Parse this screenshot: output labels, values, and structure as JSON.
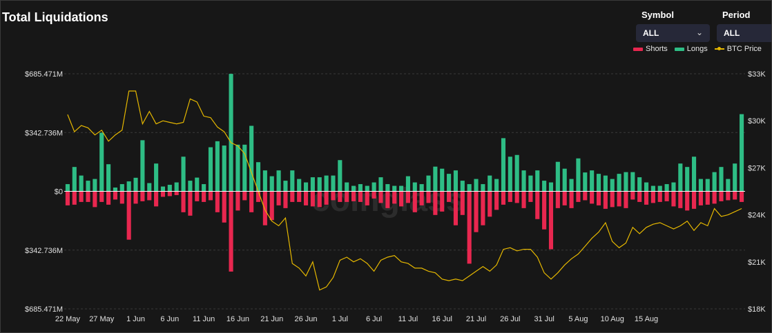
{
  "title": "Total Liquidations",
  "controls": {
    "symbol_label": "Symbol",
    "symbol_value": "ALL",
    "period_label": "Period",
    "period_value": "ALL"
  },
  "watermark": "coinglass",
  "chart_data": {
    "type": "bar",
    "title": "Total Liquidations",
    "legend": [
      {
        "name": "Shorts",
        "color": "#e8274f"
      },
      {
        "name": "Longs",
        "color": "#2ebd85"
      },
      {
        "name": "BTC Price",
        "color": "#e6b800"
      }
    ],
    "left_axis": {
      "ticks": [
        "$685.471M",
        "$342.736M",
        "$0",
        "$342.736M",
        "$685.471M"
      ],
      "range_millions": [
        -685.471,
        685.471
      ]
    },
    "right_axis": {
      "ticks": [
        "$33K",
        "$30K",
        "$27K",
        "$24K",
        "$21K",
        "$18K"
      ],
      "range": [
        18000,
        33000
      ]
    },
    "x_tick_labels": [
      "22 May",
      "27 May",
      "1 Jun",
      "6 Jun",
      "11 Jun",
      "16 Jun",
      "21 Jun",
      "26 Jun",
      "1 Jul",
      "6 Jul",
      "11 Jul",
      "16 Jul",
      "21 Jul",
      "26 Jul",
      "31 Jul",
      "5 Aug",
      "10 Aug",
      "15 Aug"
    ],
    "start_date": "22 May",
    "longs_millions": [
      42,
      142,
      92,
      62,
      72,
      342,
      158,
      22,
      42,
      58,
      79,
      298,
      48,
      162,
      28,
      38,
      52,
      202,
      62,
      80,
      42,
      257,
      292,
      267,
      685,
      272,
      272,
      382,
      170,
      122,
      88,
      122,
      62,
      122,
      72,
      52,
      82,
      82,
      92,
      92,
      182,
      52,
      32,
      42,
      32,
      52,
      82,
      42,
      32,
      32,
      88,
      52,
      42,
      92,
      144,
      132,
      102,
      122,
      62,
      42,
      72,
      42,
      92,
      72,
      310,
      202,
      212,
      122,
      92,
      122,
      62,
      52,
      172,
      132,
      72,
      192,
      110,
      122,
      102,
      92,
      72,
      102,
      112,
      112,
      82,
      52,
      32,
      32,
      42,
      52,
      162,
      142,
      202,
      72,
      72,
      112,
      142,
      72,
      162,
      450
    ],
    "shorts_millions": [
      -82,
      -78,
      -62,
      -62,
      -92,
      -62,
      -78,
      -48,
      -72,
      -282,
      -72,
      -58,
      -52,
      -88,
      -32,
      -28,
      -22,
      -122,
      -142,
      -58,
      -62,
      -52,
      -122,
      -182,
      -468,
      -112,
      -52,
      -122,
      -62,
      -198,
      -168,
      -82,
      -98,
      -62,
      -62,
      -82,
      -88,
      -92,
      -78,
      -52,
      -62,
      -62,
      -58,
      -62,
      -82,
      -42,
      -68,
      -98,
      -72,
      -88,
      -68,
      -122,
      -82,
      -68,
      -138,
      -118,
      -62,
      -198,
      -138,
      -422,
      -238,
      -198,
      -148,
      -108,
      -78,
      -62,
      -68,
      -98,
      -62,
      -162,
      -222,
      -338,
      -98,
      -82,
      -98,
      -62,
      -52,
      -72,
      -82,
      -102,
      -92,
      -88,
      -98,
      -48,
      -62,
      -78,
      -68,
      -62,
      -58,
      -88,
      -98,
      -112,
      -102,
      -82,
      -78,
      -72,
      -58,
      -52,
      -48,
      -62
    ],
    "btc_price": [
      30400,
      29300,
      29700,
      29550,
      29100,
      29400,
      28700,
      29100,
      29400,
      31900,
      31900,
      29800,
      30600,
      29800,
      30000,
      29900,
      29800,
      29900,
      31400,
      31200,
      30300,
      30200,
      29600,
      29300,
      28600,
      28400,
      27900,
      26700,
      25500,
      24300,
      23600,
      23300,
      23800,
      20900,
      20600,
      20100,
      21000,
      19200,
      19400,
      20000,
      21100,
      21300,
      21000,
      21200,
      20900,
      20400,
      21100,
      21300,
      21400,
      21000,
      20900,
      20600,
      20600,
      20400,
      20300,
      19900,
      19800,
      19900,
      19800,
      20100,
      20400,
      20700,
      20400,
      20800,
      21800,
      21900,
      21700,
      21800,
      21800,
      21300,
      20300,
      19900,
      20300,
      20800,
      21200,
      21500,
      22000,
      22500,
      22900,
      23500,
      22300,
      21900,
      22200,
      23200,
      22800,
      23200,
      23400,
      23500,
      23300,
      23100,
      23300,
      23600,
      23000,
      23500,
      23300,
      24400,
      23900,
      24000,
      24200,
      24400
    ]
  }
}
